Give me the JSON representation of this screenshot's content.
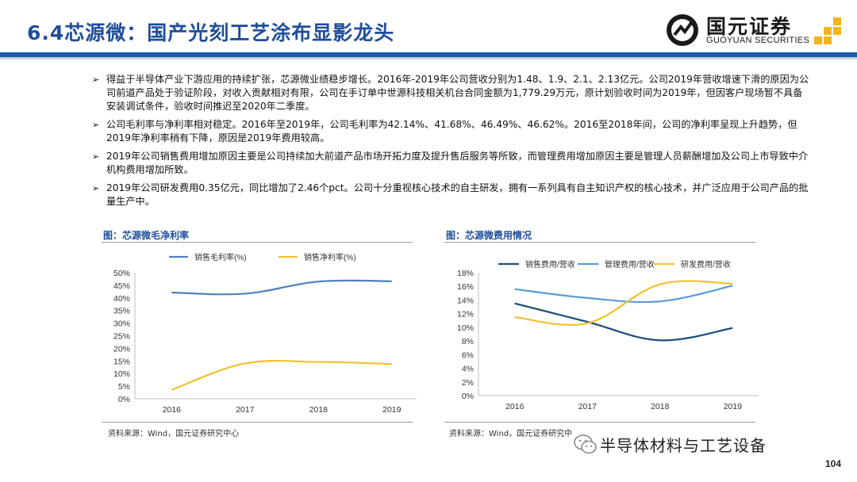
{
  "header": {
    "title": "6.4芯源微：国产光刻工艺涂布显影龙头",
    "logo_cn": "国元证券",
    "logo_en": "GUOYUAN SECURITIES",
    "accent_color": "#1f5aa8"
  },
  "bullets": [
    "得益于半导体产业下游应用的持续扩张，芯源微业绩稳步增长。2016年-2019年公司营收分别为1.48、1.9、2.1、2.13亿元。公司2019年营收增速下滑的原因为公司前道产品处于验证阶段，对收入贡献相对有限，公司在手订单中世源科技相关机台合同金额为1,779.29万元，原计划验收时间为2019年，但因客户现场暂不具备安装调试条件，验收时间推迟至2020年二季度。",
    "公司毛利率与净利率相对稳定。2016年至2019年，公司毛利率为42.14%、41.68%、46.49%、46.62%。2016至2018年间，公司的净利率呈现上升趋势，但2019年净利率稍有下降，原因是2019年费用较高。",
    "2019年公司销售费用增加原因主要是公司持续加大前道产品市场开拓力度及提升售后服务等所致，而管理费用增加原因主要是管理人员薪酬增加及公司上市导致中介机构费用增加所致。",
    "2019年公司研发费用0.35亿元，同比增加了2.46个pct。公司十分重视核心技术的自主研发，拥有一系列具有自主知识产权的核心技术，并广泛应用于公司产品的批量生产中。"
  ],
  "figure1": {
    "title": "图：芯源微毛净利率",
    "source": "资料来源：Wind，国元证券研究中心"
  },
  "figure2": {
    "title": "图：芯源微费用情况",
    "source": "资料来源：Wind，国元证券研究中"
  },
  "watermark": "半导体材料与工艺设备",
  "page_number": "104",
  "chart_data": [
    {
      "type": "line",
      "categories": [
        "2016",
        "2017",
        "2018",
        "2019"
      ],
      "series": [
        {
          "name": "销售毛利率(%)",
          "values": [
            42.14,
            41.68,
            46.49,
            46.62
          ],
          "color": "#4f81bd"
        },
        {
          "name": "销售净利率(%)",
          "values": [
            3.5,
            14.0,
            14.6,
            13.8
          ],
          "color": "#f2c12e"
        }
      ],
      "ylim": [
        0,
        50
      ],
      "ytick_step": 5,
      "ytick_format": "percent",
      "legend": "top",
      "grid": false
    },
    {
      "type": "line",
      "categories": [
        "2016",
        "2017",
        "2018",
        "2019"
      ],
      "series": [
        {
          "name": "销售费用/营收",
          "values": [
            13.5,
            10.8,
            8.1,
            9.9
          ],
          "color": "#1f4e79"
        },
        {
          "name": "管理费用/营收",
          "values": [
            15.6,
            14.3,
            13.8,
            16.1
          ],
          "color": "#5b9bd5"
        },
        {
          "name": "研发费用/营收",
          "values": [
            11.5,
            10.6,
            16.3,
            16.4
          ],
          "color": "#f2c12e"
        }
      ],
      "ylim": [
        0,
        18
      ],
      "ytick_step": 2,
      "ytick_format": "percent",
      "legend": "top",
      "grid": false
    }
  ]
}
